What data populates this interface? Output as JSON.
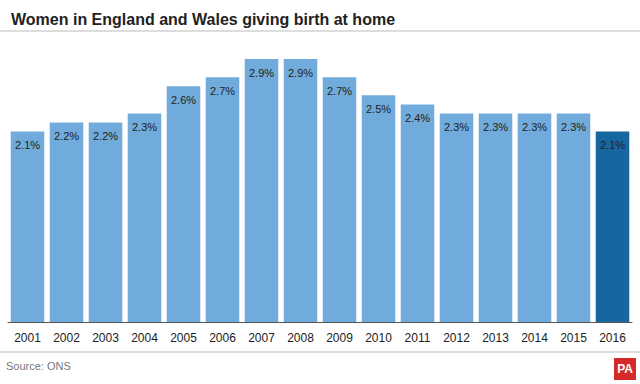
{
  "chart_data": {
    "type": "bar",
    "title": "Women in England and Wales giving birth at home",
    "source": "Source: ONS",
    "credit": "PA",
    "categories": [
      "2001",
      "2002",
      "2003",
      "2004",
      "2005",
      "2006",
      "2007",
      "2008",
      "2009",
      "2010",
      "2011",
      "2012",
      "2013",
      "2014",
      "2015",
      "2016"
    ],
    "values": [
      2.1,
      2.2,
      2.2,
      2.3,
      2.6,
      2.7,
      2.9,
      2.9,
      2.7,
      2.5,
      2.4,
      2.3,
      2.3,
      2.3,
      2.3,
      2.1
    ],
    "value_labels": [
      "2.1%",
      "2.2%",
      "2.2%",
      "2.3%",
      "2.6%",
      "2.7%",
      "2.9%",
      "2.9%",
      "2.7%",
      "2.5%",
      "2.4%",
      "2.3%",
      "2.3%",
      "2.3%",
      "2.3%",
      "2.1%"
    ],
    "colors": [
      "#70abdb",
      "#70abdb",
      "#70abdb",
      "#70abdb",
      "#70abdb",
      "#70abdb",
      "#70abdb",
      "#70abdb",
      "#70abdb",
      "#70abdb",
      "#70abdb",
      "#70abdb",
      "#70abdb",
      "#70abdb",
      "#70abdb",
      "#16679f"
    ],
    "ylim": [
      0,
      3
    ],
    "yticks": [
      0,
      3
    ],
    "grid": false,
    "data_labels": true,
    "tick_labels": "x"
  }
}
